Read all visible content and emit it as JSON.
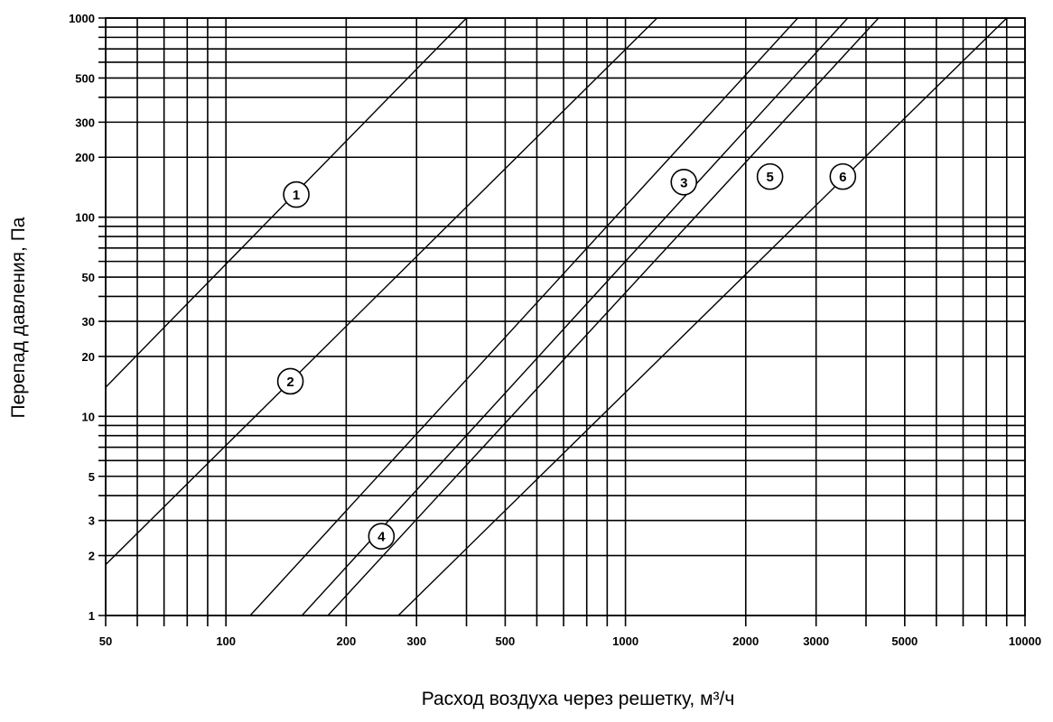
{
  "chart_data": {
    "type": "line",
    "title": "",
    "xlabel": "Расход воздуха через решетку, м³/ч",
    "ylabel": "Перепад давления, Па",
    "x_scale": "log",
    "y_scale": "log",
    "xlim": [
      50,
      10000
    ],
    "ylim": [
      1,
      1000
    ],
    "grid": true,
    "x_ticks": [
      50,
      100,
      200,
      300,
      500,
      1000,
      2000,
      3000,
      5000,
      10000
    ],
    "x_tick_labels": [
      "50",
      "100",
      "200",
      "300",
      "500",
      "1000",
      "2000",
      "3000",
      "5000",
      "10000"
    ],
    "y_ticks": [
      1,
      2,
      3,
      5,
      10,
      20,
      30,
      50,
      100,
      200,
      300,
      500,
      1000
    ],
    "y_tick_labels": [
      "1",
      "2",
      "3",
      "5",
      "10",
      "20",
      "30",
      "50",
      "100",
      "200",
      "300",
      "500",
      "1000"
    ],
    "series": [
      {
        "name": "1",
        "points": [
          [
            50,
            14
          ],
          [
            400,
            1000
          ]
        ]
      },
      {
        "name": "2",
        "points": [
          [
            50,
            1.8
          ],
          [
            1200,
            1000
          ]
        ]
      },
      {
        "name": "3",
        "points": [
          [
            115,
            1
          ],
          [
            2700,
            1000
          ]
        ]
      },
      {
        "name": "4",
        "points": [
          [
            155,
            1
          ],
          [
            3600,
            1000
          ]
        ]
      },
      {
        "name": "5",
        "points": [
          [
            180,
            1
          ],
          [
            4300,
            1000
          ]
        ]
      },
      {
        "name": "6",
        "points": [
          [
            270,
            1
          ],
          [
            9000,
            1000
          ]
        ]
      }
    ],
    "curve_labels": [
      {
        "text": "1",
        "x": 150,
        "y": 130
      },
      {
        "text": "2",
        "x": 145,
        "y": 15
      },
      {
        "text": "3",
        "x": 1400,
        "y": 150
      },
      {
        "text": "4",
        "x": 245,
        "y": 2.5
      },
      {
        "text": "5",
        "x": 2300,
        "y": 160
      },
      {
        "text": "6",
        "x": 3500,
        "y": 160
      }
    ]
  }
}
